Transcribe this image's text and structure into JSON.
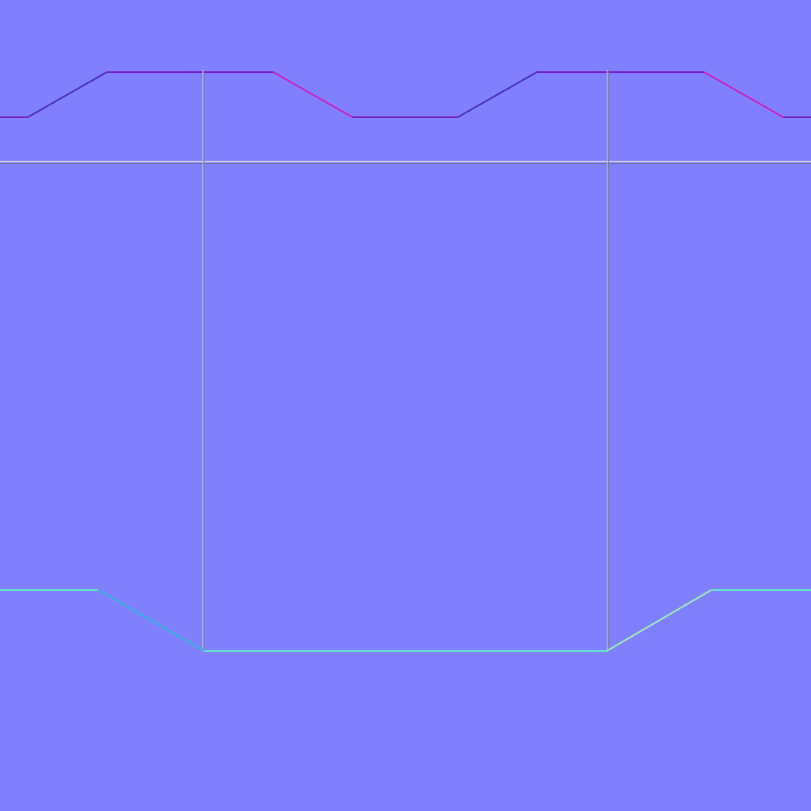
{
  "texture": {
    "kind": "normal-map",
    "base_color": "#8080ff",
    "colors": {
      "up_left_slope": "#4a2ab8",
      "up_right_slope": "#d01ab8",
      "flat_top_edge": "#7a18c8",
      "seam_top_light": "#c8c8e8",
      "seam_bottom_dark": "#6a6aa8",
      "bottom_flat_edge": "#60e8c8",
      "bottom_left_slope": "#30b8d8",
      "bottom_right_slope": "#a0f0b0",
      "vertical_seam_light": "#b8b8d8",
      "vertical_seam_dark": "#7070a0"
    }
  }
}
